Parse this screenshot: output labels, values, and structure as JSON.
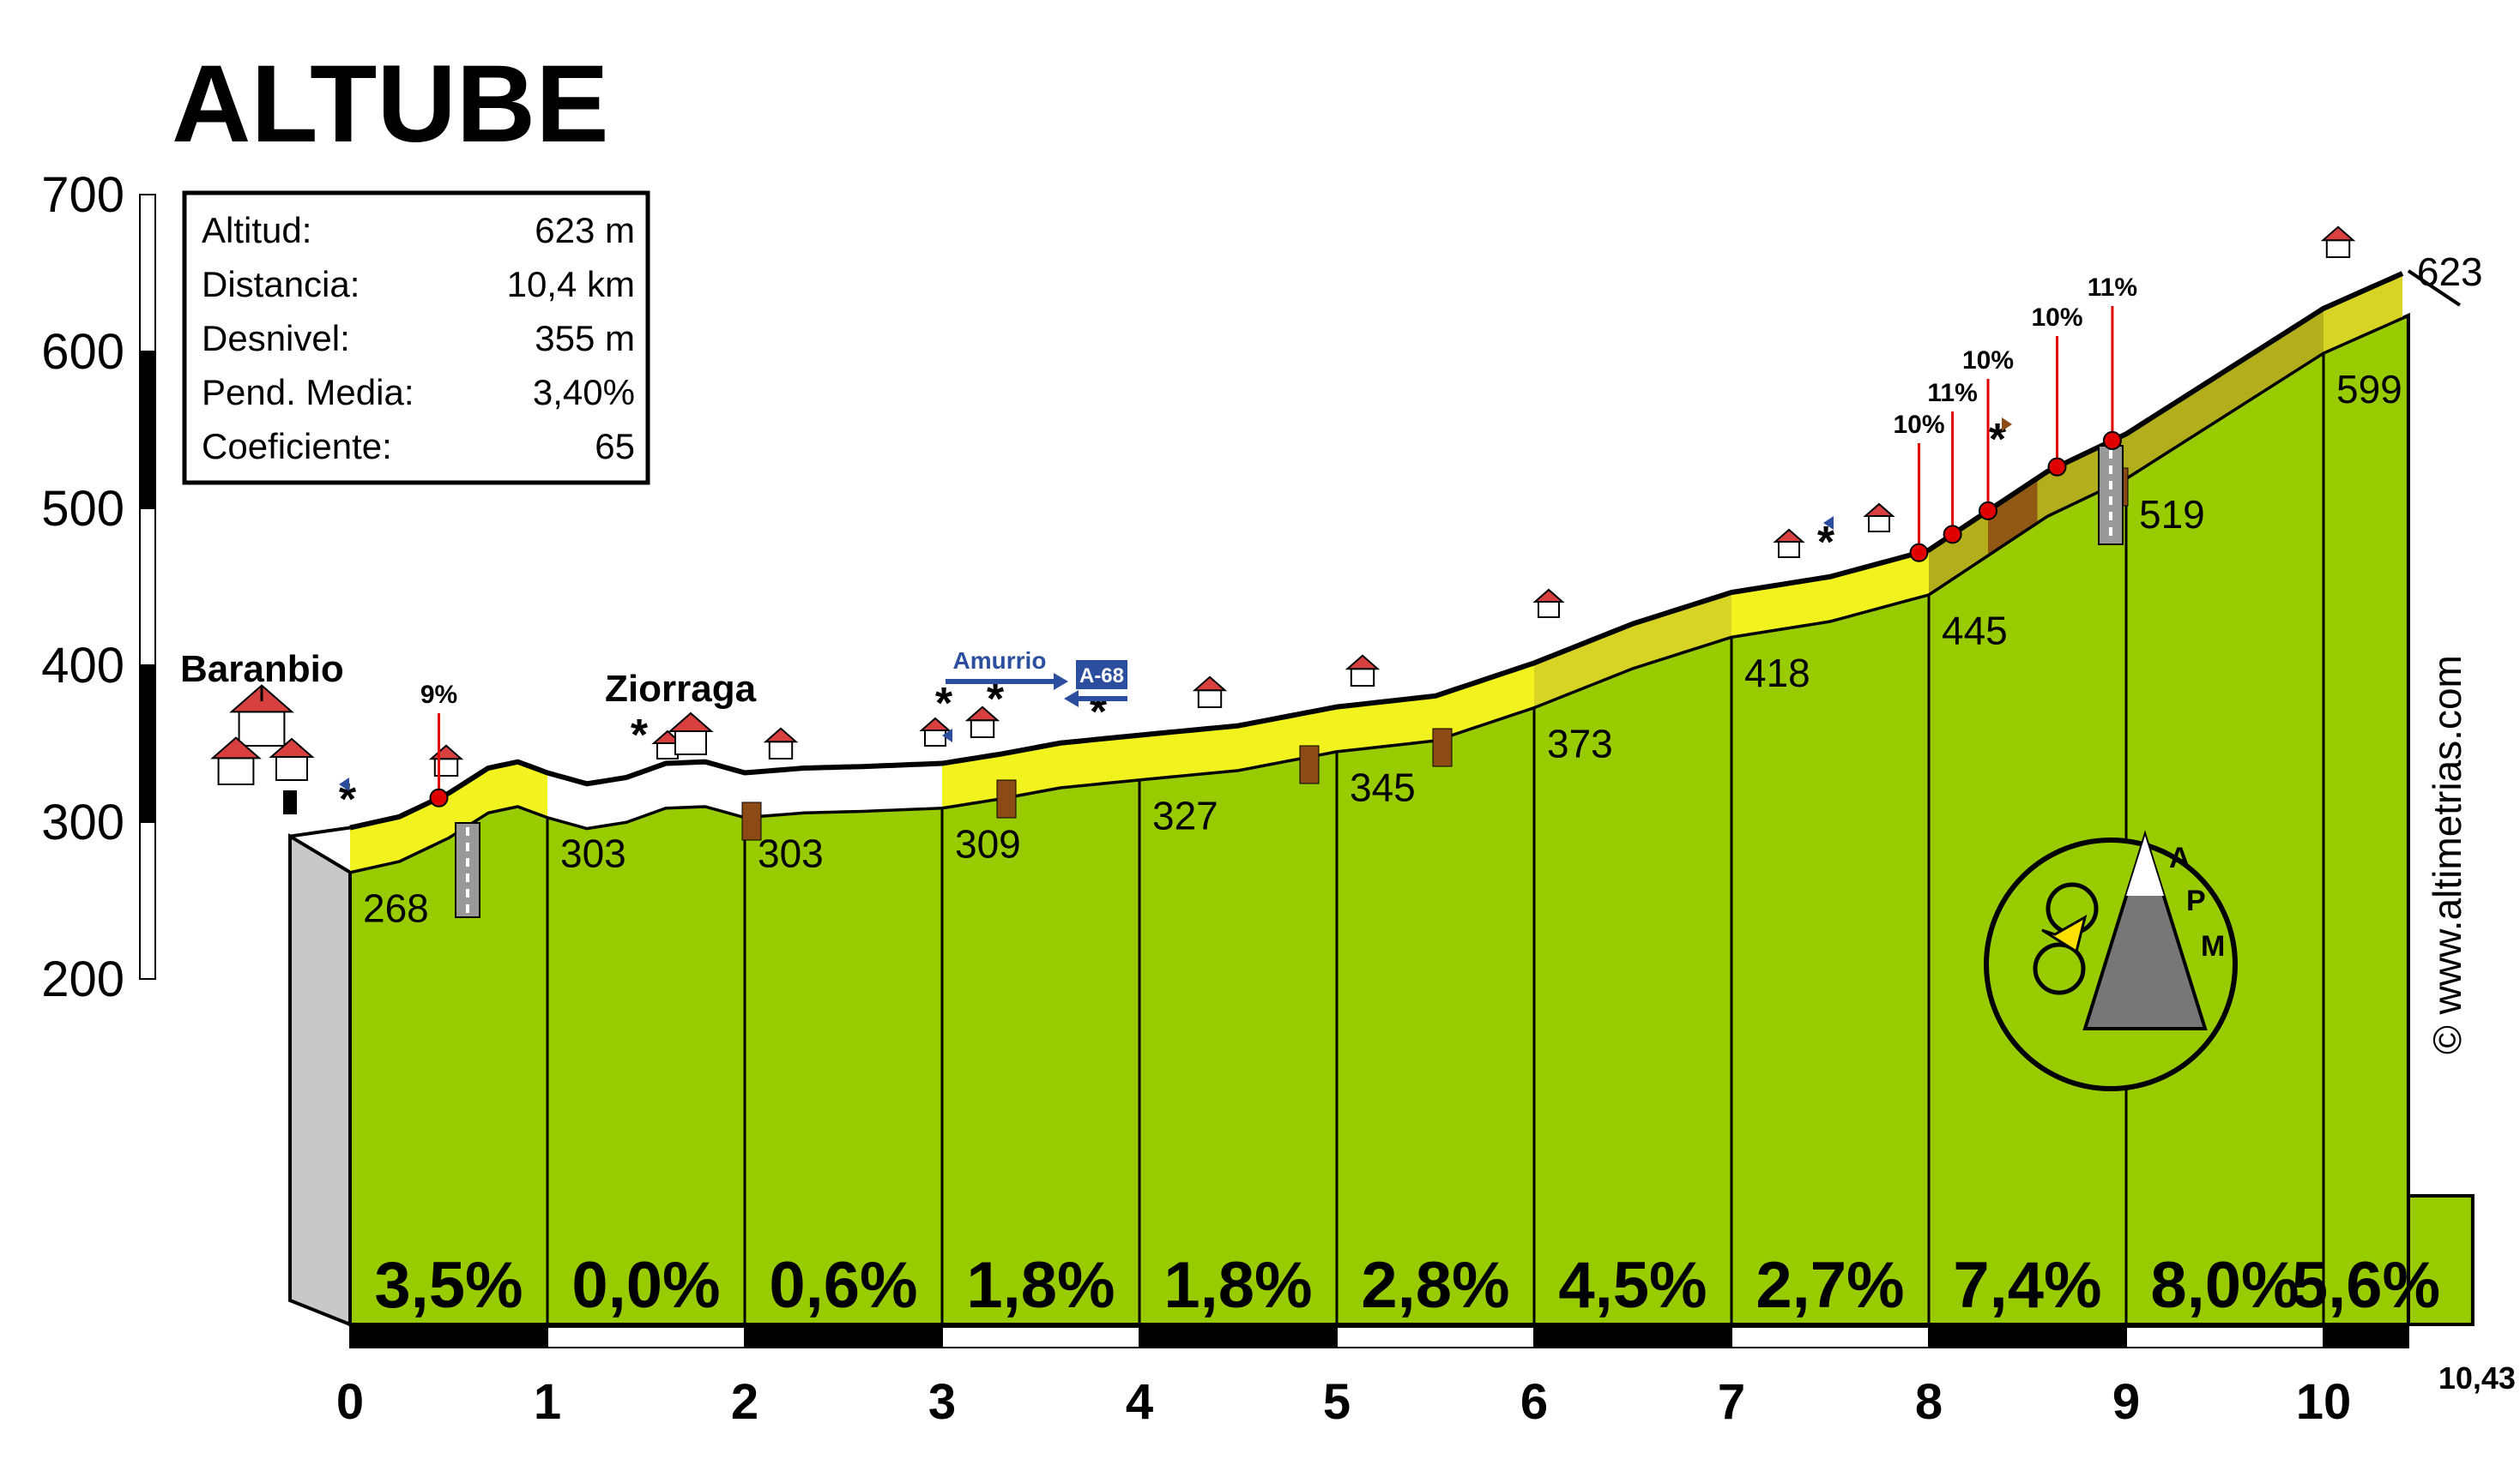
{
  "title": "ALTUBE",
  "stats": [
    {
      "label": "Altitud:",
      "value": "623 m"
    },
    {
      "label": "Distancia:",
      "value": "10,4 km"
    },
    {
      "label": "Desnivel:",
      "value": "355 m"
    },
    {
      "label": "Pend. Media:",
      "value": "3,40%"
    },
    {
      "label": "Coeficiente:",
      "value": "65"
    }
  ],
  "places": [
    {
      "name": "Baranbio",
      "km": 0
    },
    {
      "name": "Ziorraga",
      "km": 1.6
    }
  ],
  "road_signs": [
    {
      "text": "Amurrio",
      "km": 3.3
    },
    {
      "text": "A-68",
      "km": 3.8
    }
  ],
  "steep_labels": [
    {
      "text": "9%",
      "km": 0.45
    },
    {
      "text": "10%",
      "km": 7.95
    },
    {
      "text": "11%",
      "km": 8.12
    },
    {
      "text": "10%",
      "km": 8.3
    },
    {
      "text": "10%",
      "km": 8.65
    },
    {
      "text": "11%",
      "km": 8.93
    }
  ],
  "copyright": "© www.altimetrias.com",
  "logo_letters": [
    "A",
    "P",
    "M"
  ],
  "colors": {
    "fill_green": "#99CC00",
    "fill_grey": "#C8C8C8",
    "road_yellow": "#F2F21E",
    "road_olive": "#B3AE1C",
    "road_brown": "#8C4A14",
    "marker_red": "#E00000",
    "sign_blue": "#2C4E9E"
  },
  "chart_data": {
    "type": "area",
    "title": "ALTUBE",
    "xlabel": "",
    "ylabel": "",
    "xlim": [
      0,
      10.43
    ],
    "ylim": [
      200,
      700
    ],
    "y_ticks": [
      "200",
      "300",
      "400",
      "500",
      "600",
      "700"
    ],
    "x_ticks": [
      "0",
      "1",
      "2",
      "3",
      "4",
      "5",
      "6",
      "7",
      "8",
      "9",
      "10"
    ],
    "end_distance_label": "10,43",
    "km_markers": [
      {
        "km": 0,
        "altitude": 268
      },
      {
        "km": 1,
        "altitude": 303
      },
      {
        "km": 2,
        "altitude": 303
      },
      {
        "km": 3,
        "altitude": 309
      },
      {
        "km": 4,
        "altitude": 327
      },
      {
        "km": 5,
        "altitude": 345
      },
      {
        "km": 6,
        "altitude": 373
      },
      {
        "km": 7,
        "altitude": 418
      },
      {
        "km": 8,
        "altitude": 445
      },
      {
        "km": 9,
        "altitude": 519
      },
      {
        "km": 10,
        "altitude": 599
      },
      {
        "km": 10.43,
        "altitude": 623
      }
    ],
    "profile": [
      [
        0,
        268
      ],
      [
        0.25,
        275
      ],
      [
        0.5,
        290
      ],
      [
        0.7,
        306
      ],
      [
        0.85,
        310
      ],
      [
        1.0,
        303
      ],
      [
        1.2,
        296
      ],
      [
        1.4,
        300
      ],
      [
        1.6,
        309
      ],
      [
        1.8,
        310
      ],
      [
        2.0,
        303
      ],
      [
        2.3,
        306
      ],
      [
        2.6,
        307
      ],
      [
        3.0,
        309
      ],
      [
        3.3,
        315
      ],
      [
        3.6,
        322
      ],
      [
        4.0,
        327
      ],
      [
        4.5,
        333
      ],
      [
        5.0,
        345
      ],
      [
        5.5,
        352
      ],
      [
        6.0,
        373
      ],
      [
        6.5,
        398
      ],
      [
        7.0,
        418
      ],
      [
        7.5,
        428
      ],
      [
        8.0,
        445
      ],
      [
        8.3,
        470
      ],
      [
        8.6,
        495
      ],
      [
        9.0,
        519
      ],
      [
        9.5,
        559
      ],
      [
        10.0,
        599
      ],
      [
        10.43,
        623
      ]
    ],
    "segment_gradients": [
      "3,5%",
      "0,0%",
      "0,6%",
      "1,8%",
      "1,8%",
      "2,8%",
      "4,5%",
      "2,7%",
      "7,4%",
      "8,0%",
      "5,6%"
    ],
    "grid": false,
    "legend": "none"
  }
}
